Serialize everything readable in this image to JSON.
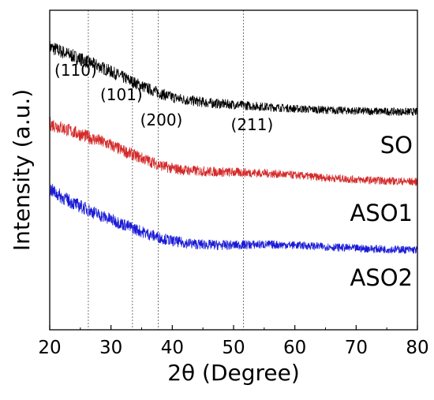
{
  "chart_data": {
    "type": "line",
    "title": "",
    "xlabel": "2θ (Degree)",
    "ylabel": "Intensity (a.u.)",
    "xlim": [
      20,
      80
    ],
    "x_ticks": [
      20,
      30,
      40,
      50,
      60,
      70,
      80
    ],
    "y_ticks_shown": false,
    "grid": false,
    "reference_lines": [
      {
        "x": 26.3,
        "label": "(110)"
      },
      {
        "x": 33.5,
        "label": "(101)"
      },
      {
        "x": 37.7,
        "label": "(200)"
      },
      {
        "x": 51.6,
        "label": "(211)"
      }
    ],
    "series": [
      {
        "name": "SO",
        "color": "#000000",
        "x": [
          20,
          22,
          24,
          26,
          28,
          30,
          32,
          34,
          36,
          38,
          40,
          42,
          44,
          46,
          48,
          50,
          52,
          55,
          60,
          65,
          70,
          75,
          80
        ],
        "y": [
          8.85,
          8.7,
          8.55,
          8.4,
          8.25,
          8.08,
          7.9,
          7.72,
          7.55,
          7.4,
          7.28,
          7.2,
          7.15,
          7.1,
          7.07,
          7.05,
          7.02,
          6.98,
          6.92,
          6.88,
          6.85,
          6.83,
          6.82
        ]
      },
      {
        "name": "ASO1",
        "color": "#d42a2a",
        "x": [
          20,
          22,
          24,
          26,
          28,
          30,
          32,
          34,
          36,
          38,
          40,
          42,
          44,
          46,
          48,
          50,
          52,
          55,
          60,
          65,
          70,
          75,
          80
        ],
        "y": [
          6.45,
          6.32,
          6.18,
          6.05,
          5.92,
          5.78,
          5.6,
          5.45,
          5.3,
          5.15,
          5.05,
          5.0,
          4.97,
          4.95,
          4.94,
          4.93,
          4.92,
          4.9,
          4.84,
          4.76,
          4.7,
          4.66,
          4.63
        ]
      },
      {
        "name": "ASO2",
        "color": "#1a1ad6",
        "x": [
          20,
          22,
          24,
          26,
          28,
          30,
          32,
          34,
          36,
          38,
          40,
          42,
          44,
          46,
          48,
          50,
          52,
          55,
          60,
          65,
          70,
          75,
          80
        ],
        "y": [
          4.4,
          4.15,
          3.95,
          3.78,
          3.6,
          3.45,
          3.3,
          3.15,
          3.0,
          2.88,
          2.78,
          2.72,
          2.68,
          2.66,
          2.65,
          2.65,
          2.66,
          2.67,
          2.65,
          2.6,
          2.55,
          2.52,
          2.5
        ]
      }
    ]
  }
}
